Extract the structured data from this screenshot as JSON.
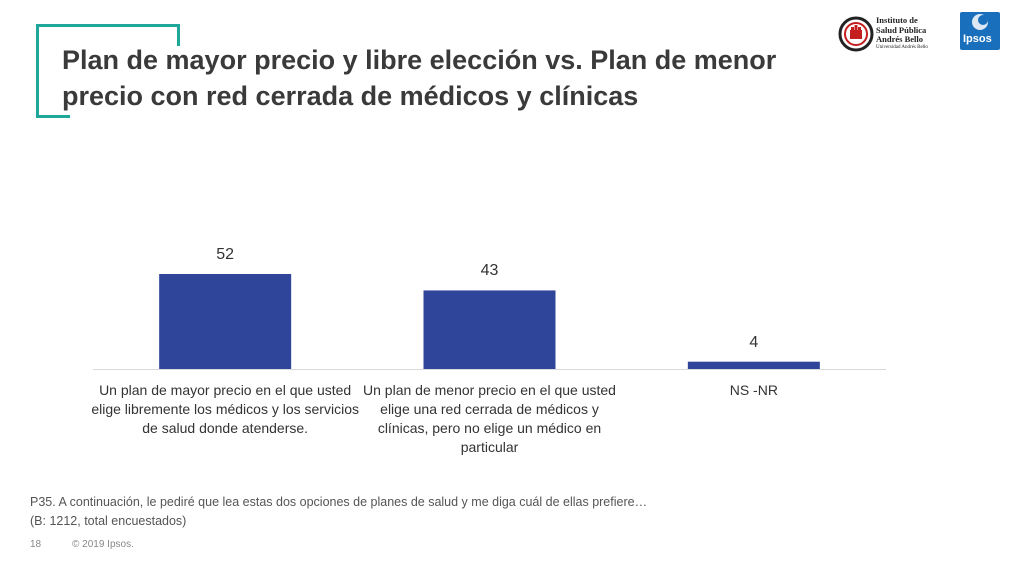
{
  "header": {
    "title": "Plan de mayor precio y libre elección vs. Plan de menor precio con red cerrada de médicos y clínicas"
  },
  "logos": {
    "institute_lines": [
      "Instituto de",
      "Salud Pública",
      "Andrés Bello"
    ],
    "institute_sub": "Universidad Andrés Bello",
    "ipsos": "Ipsos"
  },
  "chart_data": {
    "type": "bar",
    "categories": [
      "Un plan de mayor precio en el que usted elige libremente los médicos y los servicios de salud donde atenderse.",
      "Un plan de menor precio en el que usted elige una red cerrada de médicos y clínicas, pero no elige un médico en particular",
      "NS -NR"
    ],
    "values": [
      52,
      43,
      4
    ],
    "data_labels": [
      "52",
      "43",
      "4"
    ],
    "title": "",
    "xlabel": "",
    "ylabel": "",
    "ylim": [
      0,
      52
    ],
    "grid": false,
    "bar_color": "#2f4599",
    "axis_color": "#d9d9d9"
  },
  "note": {
    "question": "P35. A continuación, le pediré que lea estas dos opciones de planes de salud y me diga cuál de ellas prefiere…",
    "base": "(B: 1212, total encuestados)"
  },
  "footer": {
    "page_number": "18",
    "copyright": "© 2019 Ipsos."
  },
  "colors": {
    "accent": "#1fa79a",
    "title_text": "#3a3a3a",
    "ipsos_blue": "#1a6fbd"
  }
}
